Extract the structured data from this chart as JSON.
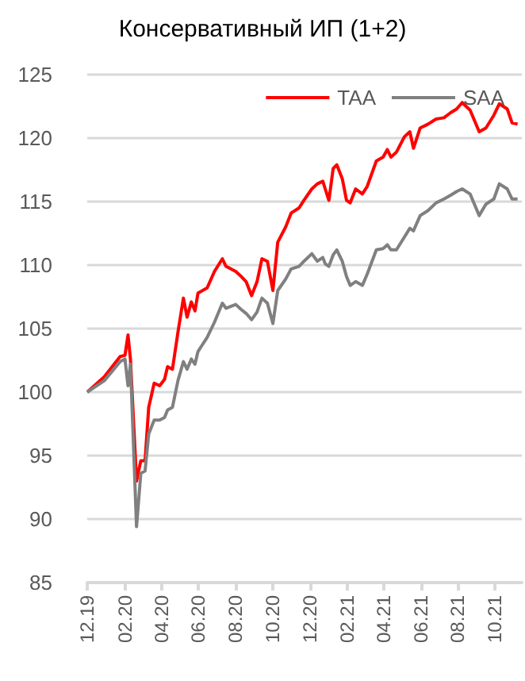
{
  "chart_data": {
    "type": "line",
    "title": "Консервативный ИП (1+2)",
    "x": [
      "2019-12-01",
      "2019-12-29",
      "2020-01-24",
      "2020-02-01",
      "2020-02-06",
      "2020-02-10",
      "2020-02-20",
      "2020-02-27",
      "2020-03-05",
      "2020-03-11",
      "2020-03-20",
      "2020-03-29",
      "2020-04-06",
      "2020-04-11",
      "2020-04-19",
      "2020-04-28",
      "2020-05-07",
      "2020-05-13",
      "2020-05-20",
      "2020-05-26",
      "2020-05-31",
      "2020-06-15",
      "2020-06-27",
      "2020-07-10",
      "2020-07-16",
      "2020-08-01",
      "2020-08-10",
      "2020-08-18",
      "2020-08-27",
      "2020-09-05",
      "2020-09-13",
      "2020-09-22",
      "2020-10-01",
      "2020-10-09",
      "2020-10-22",
      "2020-10-31",
      "2020-11-13",
      "2020-11-21",
      "2020-12-04",
      "2020-12-13",
      "2020-12-22",
      "2020-12-26",
      "2021-01-01",
      "2021-01-08",
      "2021-01-14",
      "2021-01-23",
      "2021-01-30",
      "2021-02-05",
      "2021-02-14",
      "2021-02-25",
      "2021-03-05",
      "2021-03-20",
      "2021-03-31",
      "2021-04-07",
      "2021-04-13",
      "2021-04-22",
      "2021-05-05",
      "2021-05-14",
      "2021-05-20",
      "2021-05-31",
      "2021-06-13",
      "2021-06-26",
      "2021-07-09",
      "2021-07-20",
      "2021-07-30",
      "2021-08-08",
      "2021-08-21",
      "2021-09-05",
      "2021-09-16",
      "2021-09-29",
      "2021-10-08",
      "2021-10-21",
      "2021-10-29",
      "2021-11-07"
    ],
    "series": [
      {
        "name": "TAA",
        "color": "#ff0000",
        "values": [
          100.0,
          101.2,
          102.8,
          102.9,
          104.5,
          102.6,
          93.0,
          94.6,
          94.6,
          98.8,
          100.7,
          100.5,
          101.0,
          102.0,
          101.8,
          104.7,
          107.4,
          105.9,
          107.1,
          106.4,
          107.8,
          108.2,
          109.5,
          110.5,
          109.9,
          109.5,
          109.1,
          108.7,
          107.6,
          108.7,
          110.5,
          110.3,
          108.0,
          111.8,
          113.0,
          114.1,
          114.5,
          115.1,
          116.0,
          116.4,
          116.6,
          116.0,
          115.1,
          117.6,
          117.9,
          116.8,
          115.1,
          114.9,
          116.0,
          115.6,
          116.2,
          118.2,
          118.5,
          119.1,
          118.5,
          118.9,
          120.1,
          120.5,
          119.2,
          120.8,
          121.1,
          121.5,
          121.6,
          122.0,
          122.3,
          122.8,
          122.2,
          120.5,
          120.8,
          121.8,
          122.7,
          122.3,
          121.2,
          121.1
        ]
      },
      {
        "name": "SAA",
        "color": "#808080",
        "values": [
          100.0,
          100.9,
          102.4,
          102.6,
          100.5,
          102.2,
          89.4,
          93.6,
          93.8,
          96.7,
          97.8,
          97.8,
          98.0,
          98.6,
          98.8,
          100.9,
          102.4,
          101.8,
          102.6,
          102.2,
          103.2,
          104.3,
          105.5,
          107.0,
          106.6,
          106.9,
          106.5,
          106.2,
          105.7,
          106.3,
          107.4,
          107.0,
          105.4,
          108.0,
          108.9,
          109.7,
          109.9,
          110.3,
          110.9,
          110.3,
          110.6,
          110.1,
          109.9,
          110.8,
          111.2,
          110.3,
          109.1,
          108.4,
          108.7,
          108.4,
          109.3,
          111.2,
          111.3,
          111.6,
          111.2,
          111.2,
          112.2,
          112.9,
          112.7,
          113.9,
          114.3,
          114.9,
          115.2,
          115.5,
          115.8,
          116.0,
          115.6,
          113.9,
          114.8,
          115.2,
          116.4,
          116.0,
          115.2,
          115.2
        ]
      }
    ],
    "xlim": [
      "2019-12-01",
      "2021-11-14"
    ],
    "xticks": [
      {
        "value": "2019-12-01",
        "label": "12.19"
      },
      {
        "value": "2020-02-01",
        "label": "02.20"
      },
      {
        "value": "2020-04-01",
        "label": "04.20"
      },
      {
        "value": "2020-06-01",
        "label": "06.20"
      },
      {
        "value": "2020-08-01",
        "label": "08.20"
      },
      {
        "value": "2020-10-01",
        "label": "10.20"
      },
      {
        "value": "2020-12-01",
        "label": "12.20"
      },
      {
        "value": "2021-02-01",
        "label": "02.21"
      },
      {
        "value": "2021-04-01",
        "label": "04.21"
      },
      {
        "value": "2021-06-01",
        "label": "06.21"
      },
      {
        "value": "2021-08-01",
        "label": "08.21"
      },
      {
        "value": "2021-10-01",
        "label": "10.21"
      }
    ],
    "ylim": [
      85,
      125
    ],
    "yticks": [
      85,
      90,
      95,
      100,
      105,
      110,
      115,
      120,
      125
    ],
    "grid": "y",
    "legend": "top right",
    "marker": "none",
    "line_style": "solid"
  }
}
